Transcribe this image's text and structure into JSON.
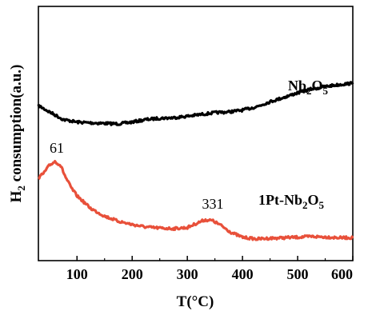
{
  "chart_data": {
    "type": "line",
    "xlabel": "T(°C)",
    "ylabel": "H2 consumption(a.u.)",
    "ylabel_parts": {
      "main": "H",
      "sub": "2",
      "rest": " consumption(a.u.)"
    },
    "xlim": [
      30,
      600
    ],
    "xticks": [
      100,
      200,
      300,
      400,
      500,
      600
    ],
    "ylim": [
      0,
      10
    ],
    "yticks_shown": false,
    "grid": false,
    "series": [
      {
        "name": "Nb2O5",
        "label_parts": {
          "a": "Nb",
          "s1": "2",
          "b": "O",
          "s2": "5"
        },
        "color": "#000000",
        "x": [
          30,
          50,
          75,
          100,
          125,
          150,
          175,
          200,
          225,
          250,
          275,
          300,
          325,
          350,
          375,
          400,
          425,
          450,
          475,
          500,
          525,
          550,
          575,
          600
        ],
        "y": [
          6.1,
          5.85,
          5.55,
          5.45,
          5.42,
          5.4,
          5.38,
          5.45,
          5.55,
          5.6,
          5.62,
          5.68,
          5.75,
          5.82,
          5.85,
          5.92,
          6.05,
          6.25,
          6.42,
          6.6,
          6.75,
          6.85,
          6.92,
          6.98
        ]
      },
      {
        "name": "1Pt-Nb2O5",
        "label_parts": {
          "a": "1Pt-Nb",
          "s1": "2",
          "b": "O",
          "s2": "5"
        },
        "color": "#e8503a",
        "x": [
          30,
          40,
          50,
          60,
          70,
          80,
          90,
          100,
          125,
          150,
          175,
          200,
          225,
          250,
          275,
          300,
          315,
          331,
          345,
          360,
          380,
          400,
          425,
          450,
          475,
          500,
          525,
          550,
          575,
          600
        ],
        "y": [
          3.25,
          3.45,
          3.75,
          3.9,
          3.75,
          3.25,
          2.85,
          2.55,
          2.05,
          1.75,
          1.55,
          1.42,
          1.32,
          1.28,
          1.26,
          1.3,
          1.45,
          1.6,
          1.58,
          1.4,
          1.1,
          0.92,
          0.85,
          0.88,
          0.9,
          0.92,
          0.95,
          0.93,
          0.9,
          0.9
        ]
      }
    ],
    "annotations": [
      {
        "text": "61",
        "x": 61,
        "series": 1
      },
      {
        "text": "331",
        "x": 331,
        "series": 1
      }
    ]
  }
}
